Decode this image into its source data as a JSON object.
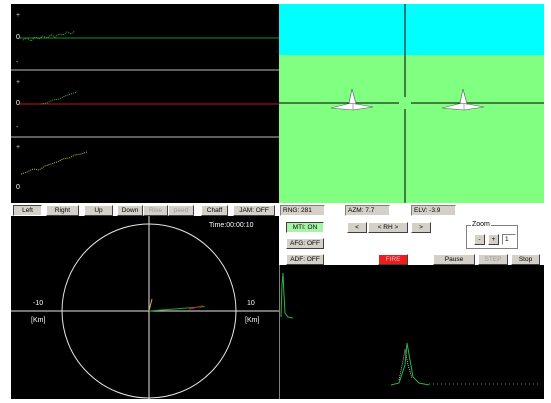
{
  "scope": {
    "channels": [
      {
        "id": "upper",
        "plus": "+",
        "zero": "0",
        "minus": "-",
        "line_color": "#1f8f2a"
      },
      {
        "id": "middle",
        "plus": "+",
        "zero": "0",
        "minus": "-",
        "line_color": "#c81414"
      },
      {
        "id": "lower",
        "plus": "+",
        "zero": "0"
      }
    ]
  },
  "view": {
    "sky_color": "#00ffff",
    "ground_color": "#80ff80"
  },
  "toolbar": {
    "left": "Left",
    "right": "Right",
    "up": "Up",
    "down": "Down",
    "rise": "Rise",
    "speed": "peed",
    "chaff": "Chaff",
    "jam": "JAM: OFF"
  },
  "readouts": {
    "rng": "RNG: 281",
    "azm": "AZM: 7.7",
    "elv": "ELV: -3.9"
  },
  "modes": {
    "mti": "MTI: ON",
    "afg": "AFG: OFF",
    "adf": "ADF: OFF"
  },
  "nav": {
    "prev": "<",
    "rh": "< RH >",
    "next": ">"
  },
  "zoom": {
    "title": "Zoom",
    "minus": "-",
    "plus": "+",
    "value": "1"
  },
  "controls": {
    "fire": "FIRE",
    "pause": "Pause",
    "step": "STEP",
    "stop": "Stop"
  },
  "ppi": {
    "time": "Time:00:00:10",
    "left_value": "-10",
    "left_unit": "[Km]",
    "right_value": "10",
    "right_unit": "[Km]",
    "range_km": 10,
    "targets": [
      {
        "name": "target-track",
        "x_km": 6.4,
        "y_km": 0.5,
        "color": "#21a62a"
      },
      {
        "name": "chaff-track",
        "x_km": 6.2,
        "y_km": 0.6,
        "color": "#c81414"
      }
    ]
  },
  "spectrum": {
    "zero_label": "0"
  }
}
